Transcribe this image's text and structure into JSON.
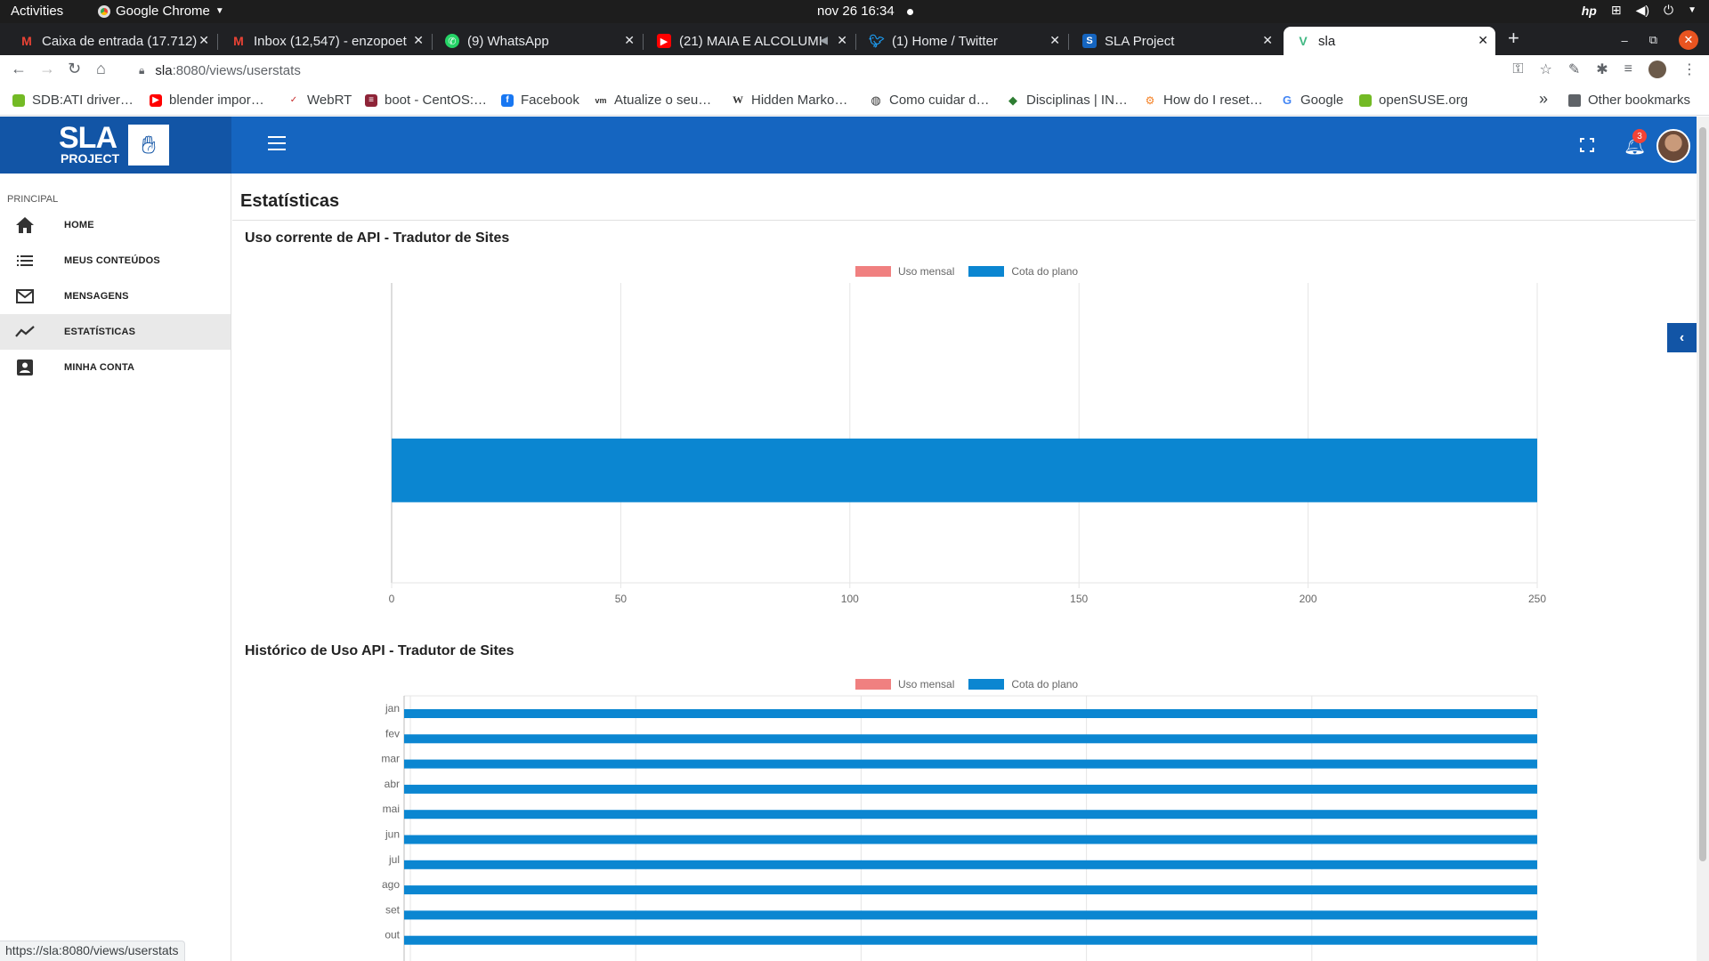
{
  "os": {
    "activities": "Activities",
    "app_name": "Google Chrome",
    "clock": "nov 26  16:34"
  },
  "tabs": [
    {
      "title": "Caixa de entrada (17.712)",
      "icon": "gmail-icon",
      "color": "#ea4335"
    },
    {
      "title": "Inbox (12,547) - enzopoet",
      "icon": "gmail-icon",
      "color": "#ea4335"
    },
    {
      "title": "(9) WhatsApp",
      "icon": "whatsapp-icon",
      "color": "#25d366"
    },
    {
      "title": "(21) MAIA E ALCOLUMI",
      "icon": "youtube-icon",
      "color": "#ff0000"
    },
    {
      "title": "(1) Home / Twitter",
      "icon": "twitter-icon",
      "color": "#1d9bf0"
    },
    {
      "title": "SLA Project",
      "icon": "sla-icon",
      "color": "#1565c0"
    },
    {
      "title": "sla",
      "icon": "vue-icon",
      "color": "#41b883",
      "active": true
    }
  ],
  "address": {
    "host": "sla",
    "path": ":8080/views/userstats"
  },
  "bookmarks": [
    {
      "label": "SDB:ATI driver…",
      "color": "#73ba25"
    },
    {
      "label": "blender impor…",
      "color": "#ff0000"
    },
    {
      "label": "WebRT",
      "color": "#c62828"
    },
    {
      "label": "boot - CentOS:…",
      "color": "#8e2438"
    },
    {
      "label": "Facebook",
      "color": "#1877f2"
    },
    {
      "label": "Atualize o seu…",
      "color": "#333333"
    },
    {
      "label": "Hidden Marko…",
      "color": "#333333"
    },
    {
      "label": "Como cuidar d…",
      "color": "#333333"
    },
    {
      "label": "Disciplinas | IN…",
      "color": "#2e7d32"
    },
    {
      "label": "How do I reset…",
      "color": "#f48024"
    },
    {
      "label": "Google",
      "color": "#4285f4"
    },
    {
      "label": "openSUSE.org",
      "color": "#73ba25"
    }
  ],
  "bookmarks_more": "»",
  "other_bookmarks": "Other bookmarks",
  "app": {
    "logo_text": "SLA",
    "logo_sub": "PROJECT",
    "notification_count": "3",
    "brand_color": "#1565c0"
  },
  "sidebar": {
    "section": "PRINCIPAL",
    "items": [
      {
        "label": "HOME",
        "icon": "home-icon"
      },
      {
        "label": "MEUS CONTEÚDOS",
        "icon": "list-icon"
      },
      {
        "label": "MENSAGENS",
        "icon": "mail-icon"
      },
      {
        "label": "ESTATÍSTICAS",
        "icon": "trending-icon",
        "active": true
      },
      {
        "label": "MINHA CONTA",
        "icon": "account-icon"
      }
    ]
  },
  "page": {
    "title": "Estatísticas"
  },
  "chart_data": [
    {
      "type": "bar",
      "orientation": "horizontal",
      "title": "Uso corrente de API - Tradutor de Sites",
      "legend": [
        "Uso mensal",
        "Cota do plano"
      ],
      "legend_position": "top-center",
      "series": [
        {
          "name": "Uso mensal",
          "values": [
            0
          ],
          "color": "#f08080"
        },
        {
          "name": "Cota do plano",
          "values": [
            250
          ],
          "color": "#0b86d1"
        }
      ],
      "x_ticks": [
        "0",
        "50",
        "100",
        "150",
        "200",
        "250"
      ],
      "xlim": [
        0,
        250
      ],
      "grid": true
    },
    {
      "type": "bar",
      "orientation": "horizontal",
      "title": "Histórico de Uso API - Tradutor de Sites",
      "legend": [
        "Uso mensal",
        "Cota do plano"
      ],
      "legend_position": "top-center",
      "categories": [
        "jan",
        "fev",
        "mar",
        "abr",
        "mai",
        "jun",
        "jul",
        "ago",
        "set",
        "out"
      ],
      "series": [
        {
          "name": "Uso mensal",
          "values": [
            0,
            0,
            0,
            0,
            0,
            0,
            0,
            0,
            0,
            0
          ],
          "color": "#f08080"
        },
        {
          "name": "Cota do plano",
          "values": [
            250,
            250,
            250,
            250,
            250,
            250,
            250,
            250,
            250,
            250
          ],
          "color": "#0b86d1"
        }
      ],
      "xlim": [
        0,
        250
      ],
      "grid": true
    }
  ],
  "status_url": "https://sla:8080/views/userstats"
}
